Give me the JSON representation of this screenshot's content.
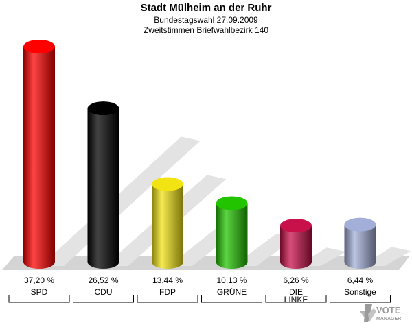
{
  "header": {
    "title": "Stadt Mülheim an der Ruhr",
    "subtitle_1": "Bundestagswahl 27.09.2009",
    "subtitle_2": "Zweitstimmen Briefwahlbezirk 140"
  },
  "logo": {
    "line1": "VOTE",
    "line2": "MANAGER"
  },
  "chart_data": {
    "type": "bar",
    "categories": [
      "SPD",
      "CDU",
      "FDP",
      "GRÜNE",
      "DIE LINKE",
      "Sonstige"
    ],
    "values": [
      37.2,
      26.52,
      13.44,
      10.13,
      6.26,
      6.44
    ],
    "value_labels": [
      "37,20 %",
      "26,52 %",
      "13,44 %",
      "10,13 %",
      "6,26 %",
      "6,44 %"
    ],
    "colors": [
      "#ff0000",
      "#000000",
      "#f2e312",
      "#22c400",
      "#c8104a",
      "#a3afd8"
    ],
    "ylim": [
      0,
      37.2
    ],
    "grid": false,
    "legend": "none",
    "style": "3d-cylinder"
  }
}
